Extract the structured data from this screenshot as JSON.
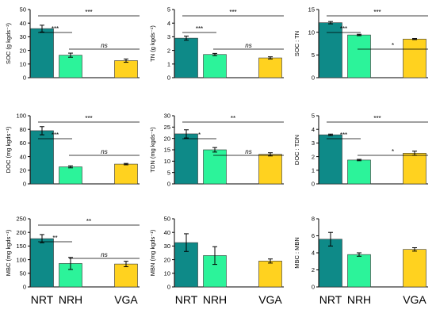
{
  "colors": {
    "NRT": "#0e8a88",
    "NRH": "#2cf39a",
    "VGA": "#ffd21f"
  },
  "chart_data": [
    {
      "type": "bar",
      "ylabel": "SOC (g kgds⁻¹)",
      "categories": [
        "NRT",
        "NRH",
        "VGA"
      ],
      "values": [
        36,
        16.5,
        12.5
      ],
      "errors": [
        2.5,
        1.5,
        1.2
      ],
      "ylim": [
        0,
        50
      ],
      "yticks": [
        "0",
        "10",
        "20",
        "30",
        "40",
        "50"
      ],
      "significance": [
        {
          "from": "NRT",
          "to": "NRH",
          "label": "***"
        },
        {
          "from": "NRT",
          "to": "VGA",
          "label": "***"
        },
        {
          "from": "NRH",
          "to": "VGA",
          "label": "ns"
        }
      ]
    },
    {
      "type": "bar",
      "ylabel": "TN (g kgds⁻¹)",
      "categories": [
        "NRT",
        "NRH",
        "VGA"
      ],
      "values": [
        2.9,
        1.7,
        1.45
      ],
      "errors": [
        0.15,
        0.08,
        0.08
      ],
      "ylim": [
        0,
        5
      ],
      "yticks": [
        "0",
        "1",
        "2",
        "3",
        "4",
        "5"
      ],
      "significance": [
        {
          "from": "NRT",
          "to": "NRH",
          "label": "***"
        },
        {
          "from": "NRT",
          "to": "VGA",
          "label": "***"
        },
        {
          "from": "NRH",
          "to": "VGA",
          "label": "ns"
        }
      ]
    },
    {
      "type": "bar",
      "ylabel": "SOC : TN",
      "categories": [
        "NRT",
        "NRH",
        "VGA"
      ],
      "values": [
        12.1,
        9.4,
        8.5
      ],
      "errors": [
        0.25,
        0.15,
        0.12
      ],
      "ylim": [
        0,
        15
      ],
      "yticks": [
        "0",
        "5",
        "10",
        "15"
      ],
      "significance": [
        {
          "from": "NRT",
          "to": "NRH",
          "label": "***"
        },
        {
          "from": "NRT",
          "to": "VGA",
          "label": "***"
        },
        {
          "from": "NRH",
          "to": "VGA",
          "label": "*"
        }
      ]
    },
    {
      "type": "bar",
      "ylabel": "DOC (mg kgds⁻¹)",
      "categories": [
        "NRT",
        "NRH",
        "VGA"
      ],
      "values": [
        78,
        25,
        29
      ],
      "errors": [
        6,
        1.5,
        1
      ],
      "ylim": [
        0,
        100
      ],
      "yticks": [
        "0",
        "20",
        "40",
        "60",
        "80",
        "100"
      ],
      "significance": [
        {
          "from": "NRT",
          "to": "NRH",
          "label": "***"
        },
        {
          "from": "NRT",
          "to": "VGA",
          "label": "***"
        },
        {
          "from": "NRH",
          "to": "VGA",
          "label": "ns"
        }
      ]
    },
    {
      "type": "bar",
      "ylabel": "TDN (mg kgds⁻¹)",
      "categories": [
        "NRT",
        "NRH",
        "VGA"
      ],
      "values": [
        22,
        15,
        13
      ],
      "errors": [
        1.8,
        1,
        0.7
      ],
      "ylim": [
        0,
        30
      ],
      "yticks": [
        "0",
        "5",
        "10",
        "15",
        "20",
        "25",
        "30"
      ],
      "significance": [
        {
          "from": "NRT",
          "to": "NRH",
          "label": "*"
        },
        {
          "from": "NRT",
          "to": "VGA",
          "label": "**"
        },
        {
          "from": "NRH",
          "to": "VGA",
          "label": "ns"
        }
      ]
    },
    {
      "type": "bar",
      "ylabel": "DOC : TDN",
      "categories": [
        "NRT",
        "NRH",
        "VGA"
      ],
      "values": [
        3.6,
        1.75,
        2.25
      ],
      "errors": [
        0.05,
        0.05,
        0.15
      ],
      "ylim": [
        0,
        5
      ],
      "yticks": [
        "0",
        "1",
        "2",
        "3",
        "4",
        "5"
      ],
      "significance": [
        {
          "from": "NRT",
          "to": "NRH",
          "label": "***"
        },
        {
          "from": "NRT",
          "to": "VGA",
          "label": "***"
        },
        {
          "from": "NRH",
          "to": "VGA",
          "label": "*"
        }
      ]
    },
    {
      "type": "bar",
      "ylabel": "MBC (mg kgds⁻¹)",
      "categories": [
        "NRT",
        "NRH",
        "VGA"
      ],
      "values": [
        177,
        86,
        84
      ],
      "errors": [
        15,
        22,
        10
      ],
      "ylim": [
        0,
        250
      ],
      "yticks": [
        "0",
        "50",
        "100",
        "150",
        "200",
        "250"
      ],
      "significance": [
        {
          "from": "NRT",
          "to": "NRH",
          "label": "**"
        },
        {
          "from": "NRT",
          "to": "VGA",
          "label": "**"
        },
        {
          "from": "NRH",
          "to": "VGA",
          "label": "ns"
        }
      ]
    },
    {
      "type": "bar",
      "ylabel": "MBN (mg kgds⁻¹)",
      "categories": [
        "NRT",
        "NRH",
        "VGA"
      ],
      "values": [
        32.5,
        23,
        19
      ],
      "errors": [
        6.5,
        6.5,
        1.5
      ],
      "ylim": [
        0,
        50
      ],
      "yticks": [
        "0",
        "10",
        "20",
        "30",
        "40",
        "50"
      ],
      "significance": []
    },
    {
      "type": "bar",
      "ylabel": "MBC : MBN",
      "categories": [
        "NRT",
        "NRH",
        "VGA"
      ],
      "values": [
        5.6,
        3.8,
        4.4
      ],
      "errors": [
        0.8,
        0.2,
        0.2
      ],
      "ylim": [
        0,
        8
      ],
      "yticks": [
        "0",
        "2",
        "4",
        "6",
        "8"
      ],
      "significance": []
    }
  ]
}
